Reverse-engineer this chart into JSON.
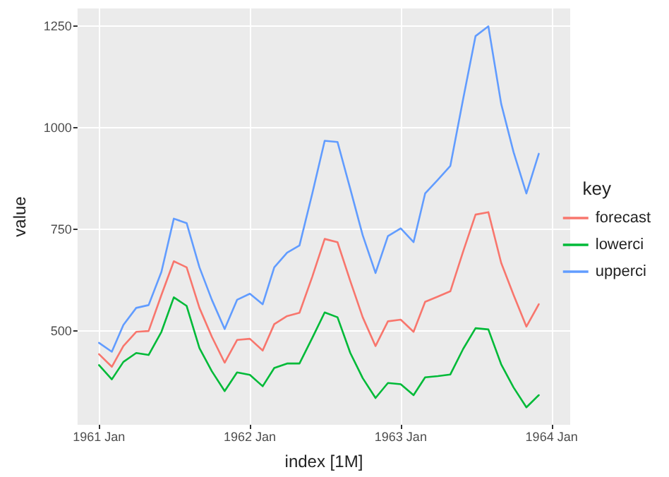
{
  "chart_data": {
    "type": "line",
    "xlabel": "index [1M]",
    "ylabel": "value",
    "legend_title": "key",
    "legend": "right",
    "grid": true,
    "line_style": "solid",
    "marker": "none",
    "x": [
      "1961-01",
      "1961-02",
      "1961-03",
      "1961-04",
      "1961-05",
      "1961-06",
      "1961-07",
      "1961-08",
      "1961-09",
      "1961-10",
      "1961-11",
      "1961-12",
      "1962-01",
      "1962-02",
      "1962-03",
      "1962-04",
      "1962-05",
      "1962-06",
      "1962-07",
      "1962-08",
      "1962-09",
      "1962-10",
      "1962-11",
      "1962-12",
      "1963-01",
      "1963-02",
      "1963-03",
      "1963-04",
      "1963-05",
      "1963-06",
      "1963-07",
      "1963-08",
      "1963-09",
      "1963-10",
      "1963-11",
      "1963-12"
    ],
    "xlim": [
      "1960-11-10",
      "1964-02-15"
    ],
    "xticks": [
      {
        "value": "1961-01",
        "label": "1961 Jan"
      },
      {
        "value": "1962-01",
        "label": "1962 Jan"
      },
      {
        "value": "1963-01",
        "label": "1963 Jan"
      },
      {
        "value": "1964-01",
        "label": "1964 Jan"
      }
    ],
    "ylim": [
      268,
      1294
    ],
    "yticks": [
      500,
      750,
      1000,
      1250
    ],
    "series": [
      {
        "name": "forecast",
        "color": "#f8766d",
        "values": [
          442,
          411,
          462,
          497,
          499,
          588,
          671,
          656,
          556,
          485,
          421,
          477,
          480,
          451,
          516,
          536,
          544,
          633,
          726,
          718,
          622,
          533,
          462,
          523,
          527,
          497,
          571,
          584,
          597,
          695,
          786,
          792,
          667,
          588,
          510,
          565
        ]
      },
      {
        "name": "lowerci",
        "color": "#00ba38",
        "values": [
          415,
          380,
          423,
          445,
          440,
          497,
          582,
          561,
          457,
          400,
          351,
          397,
          391,
          363,
          408,
          419,
          419,
          482,
          545,
          533,
          445,
          383,
          334,
          371,
          368,
          341,
          385,
          388,
          392,
          455,
          506,
          503,
          417,
          360,
          311,
          341
        ]
      },
      {
        "name": "upperci",
        "color": "#619cff",
        "values": [
          470,
          448,
          514,
          556,
          563,
          645,
          776,
          765,
          656,
          576,
          504,
          576,
          591,
          565,
          656,
          692,
          710,
          838,
          968,
          965,
          849,
          735,
          642,
          733,
          752,
          718,
          838,
          872,
          906,
          1071,
          1226,
          1250,
          1059,
          940,
          838,
          936
        ]
      }
    ]
  }
}
